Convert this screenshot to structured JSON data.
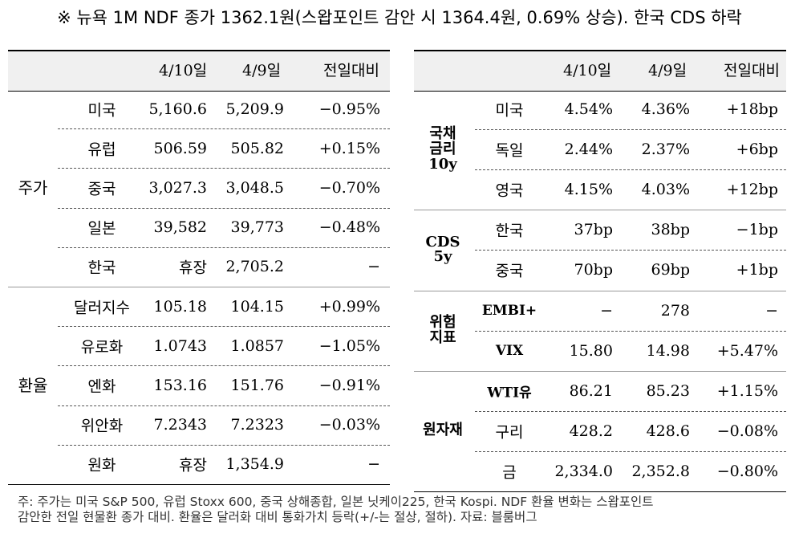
{
  "title": "※ 뉴욕 1M NDF 종가 1362.1원(스왑포인트 감안 시 1364.4원, 0.69% 상승). 한국 CDS 하락",
  "left_table": {
    "headers": [
      "4/10일",
      "4/9일",
      "전일대비"
    ],
    "groups": [
      {
        "label": "주가",
        "rows": [
          {
            "name": "미국",
            "d1": "5,160.6",
            "d0": "5,209.9",
            "chg": "−0.95%"
          },
          {
            "name": "유럽",
            "d1": "506.59",
            "d0": "505.82",
            "chg": "+0.15%"
          },
          {
            "name": "중국",
            "d1": "3,027.3",
            "d0": "3,048.5",
            "chg": "−0.70%"
          },
          {
            "name": "일본",
            "d1": "39,582",
            "d0": "39,773",
            "chg": "−0.48%"
          },
          {
            "name": "한국",
            "d1": "휴장",
            "d0": "2,705.2",
            "chg": "−"
          }
        ]
      },
      {
        "label": "환율",
        "rows": [
          {
            "name": "달러지수",
            "d1": "105.18",
            "d0": "104.15",
            "chg": "+0.99%"
          },
          {
            "name": "유로화",
            "d1": "1.0743",
            "d0": "1.0857",
            "chg": "−1.05%"
          },
          {
            "name": "엔화",
            "d1": "153.16",
            "d0": "151.76",
            "chg": "−0.91%"
          },
          {
            "name": "위안화",
            "d1": "7.2343",
            "d0": "7.2323",
            "chg": "−0.03%"
          },
          {
            "name": "원화",
            "d1": "휴장",
            "d0": "1,354.9",
            "chg": "−"
          }
        ]
      }
    ]
  },
  "right_table": {
    "headers": [
      "4/10일",
      "4/9일",
      "전일대비"
    ],
    "groups": [
      {
        "label": "국채\n금리\n10y",
        "rows": [
          {
            "name": "미국",
            "d1": "4.54%",
            "d0": "4.36%",
            "chg": "+18bp"
          },
          {
            "name": "독일",
            "d1": "2.44%",
            "d0": "2.37%",
            "chg": "+6bp"
          },
          {
            "name": "영국",
            "d1": "4.15%",
            "d0": "4.03%",
            "chg": "+12bp"
          }
        ]
      },
      {
        "label": "CDS\n5y",
        "rows": [
          {
            "name": "한국",
            "d1": "37bp",
            "d0": "38bp",
            "chg": "−1bp"
          },
          {
            "name": "중국",
            "d1": "70bp",
            "d0": "69bp",
            "chg": "+1bp"
          }
        ]
      },
      {
        "label": "위험\n지표",
        "rows": [
          {
            "name": "EMBI+",
            "d1": "−",
            "d0": "278",
            "chg": "−"
          },
          {
            "name": "VIX",
            "d1": "15.80",
            "d0": "14.98",
            "chg": "+5.47%"
          }
        ]
      },
      {
        "label": "원자재",
        "rows": [
          {
            "name": "WTI유",
            "d1": "86.21",
            "d0": "85.23",
            "chg": "+1.15%"
          },
          {
            "name": "구리",
            "d1": "428.2",
            "d0": "428.6",
            "chg": "−0.08%"
          },
          {
            "name": "금",
            "d1": "2,334.0",
            "d0": "2,352.8",
            "chg": "−0.80%"
          }
        ]
      }
    ]
  },
  "footnote": [
    "주: 주가는 미국 S&P 500, 유럽 Stoxx 600, 중국 상해종합, 일본 닛케이225, 한국 Kospi. NDF 환율 변화는 스왑포인트",
    "감안한 전일 현물환 종가 대비. 환율은 달러화 대비 통화가치 등락(+/-는 절상, 절하). 자료: 블룸버그"
  ]
}
